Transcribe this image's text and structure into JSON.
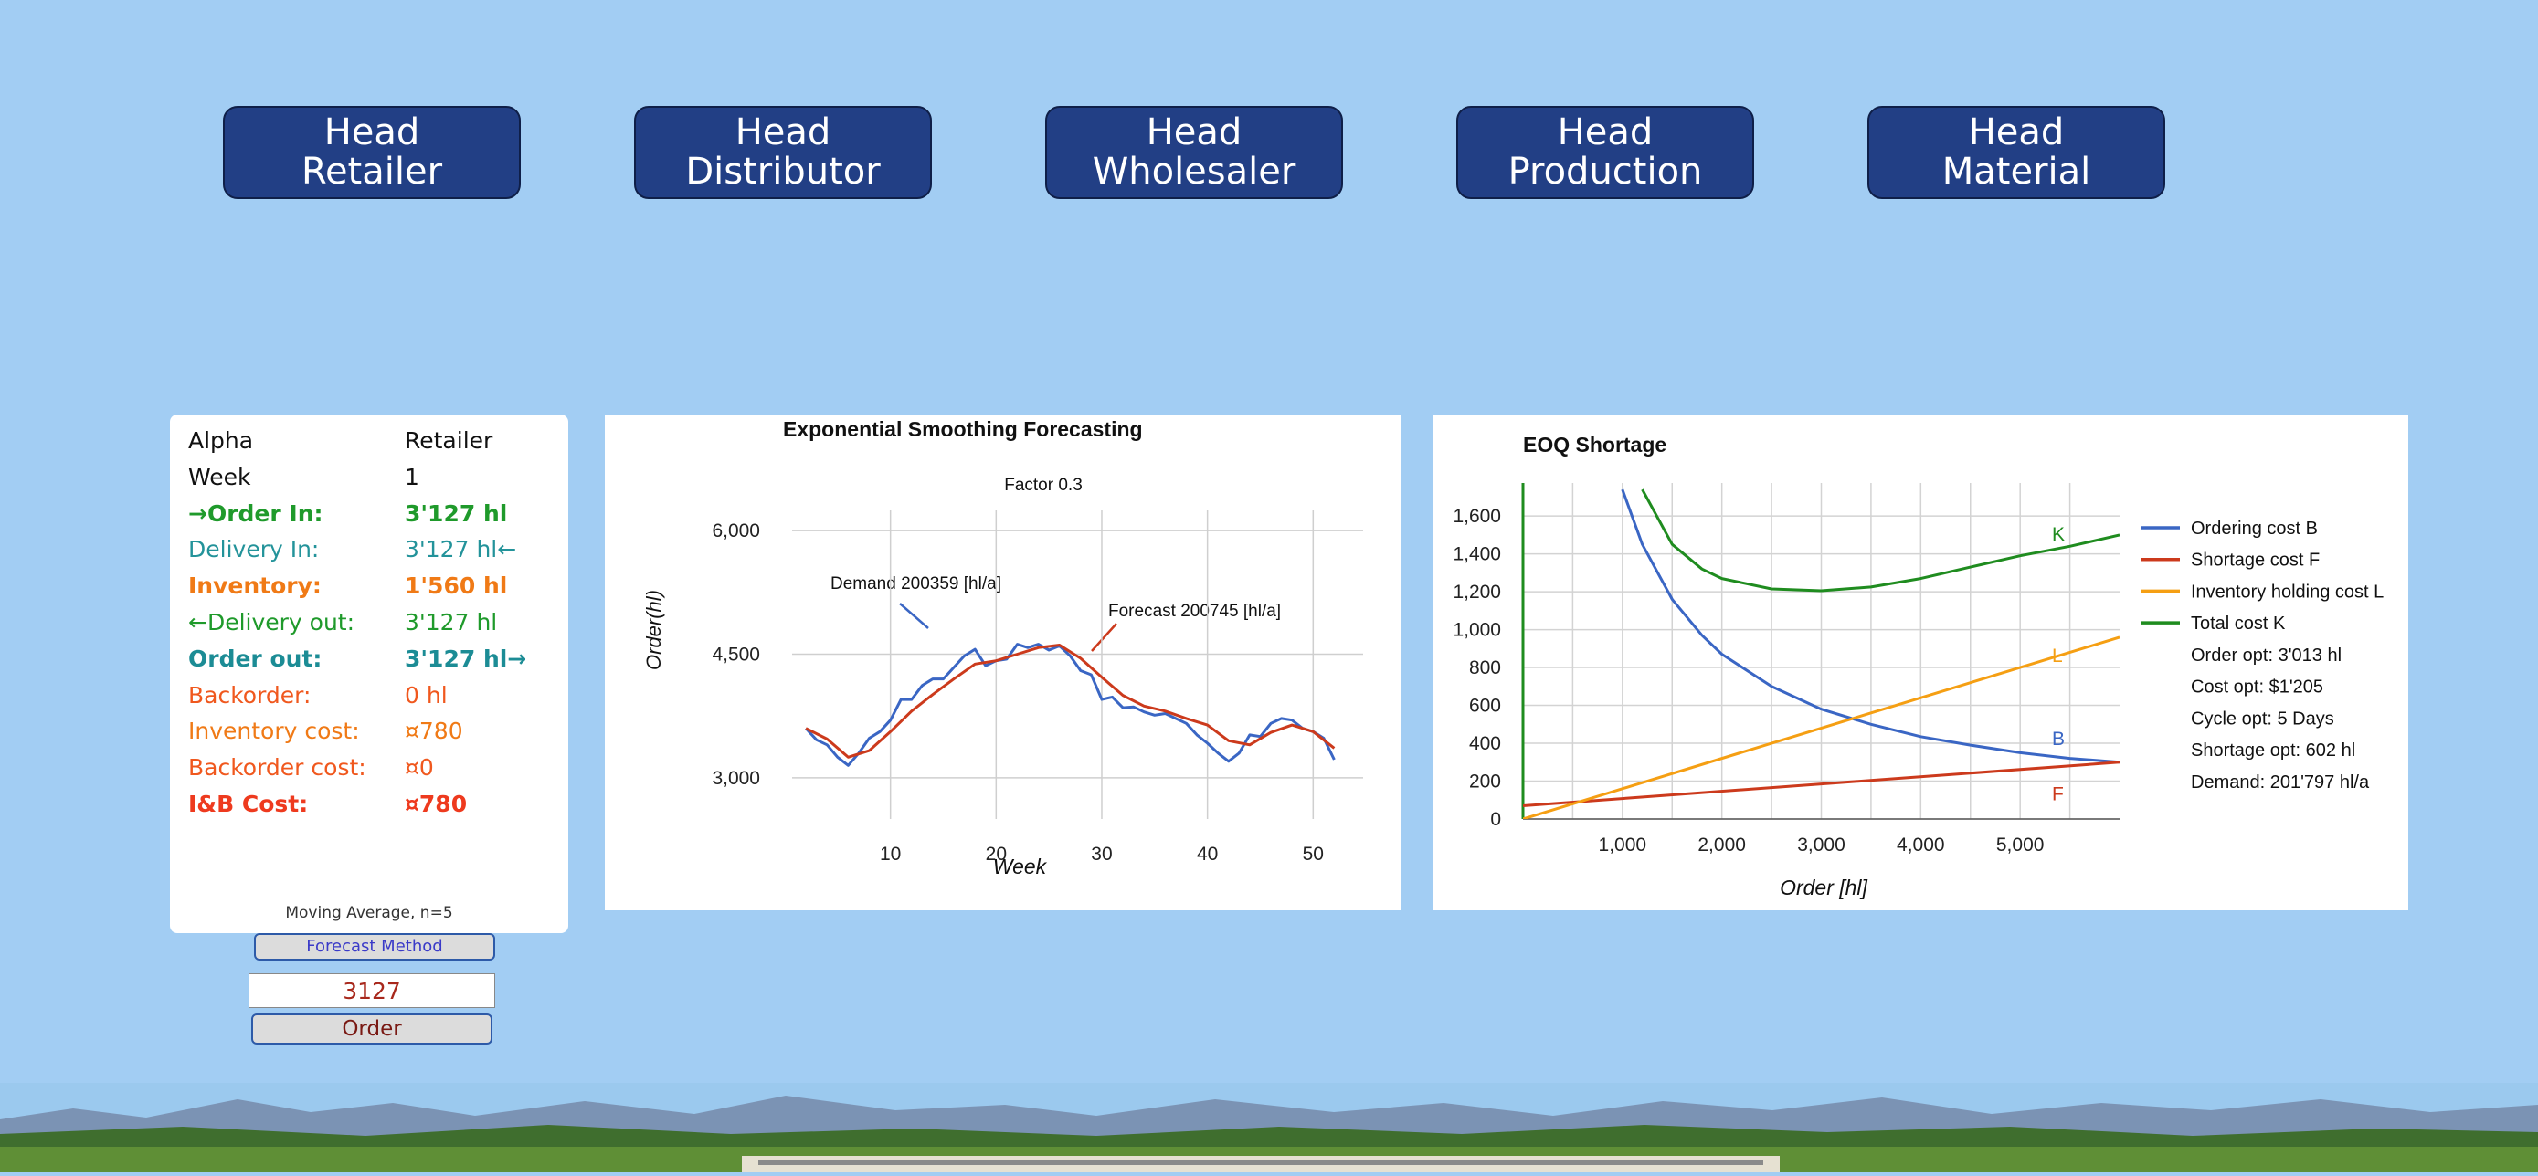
{
  "head_buttons": [
    {
      "line1": "Head",
      "line2": "Retailer"
    },
    {
      "line1": "Head",
      "line2": "Distributor"
    },
    {
      "line1": "Head",
      "line2": "Wholesaler"
    },
    {
      "line1": "Head",
      "line2": "Production"
    },
    {
      "line1": "Head",
      "line2": "Material"
    }
  ],
  "info_panel": {
    "rows": [
      {
        "label": "Alpha",
        "value": "Retailer",
        "color": "#111111",
        "bold": false
      },
      {
        "label": "Week",
        "value": "1",
        "color": "#111111",
        "bold": false
      },
      {
        "label": "→Order In:",
        "value": "3'127 hl",
        "color": "#1f9a2b",
        "bold": true
      },
      {
        "label": "Delivery In:",
        "value": "3'127 hl←",
        "color": "#23939a",
        "bold": false
      },
      {
        "label": "Inventory:",
        "value": "1'560 hl",
        "color": "#f07a16",
        "bold": true
      },
      {
        "label": "←Delivery out:",
        "value": "3'127 hl",
        "color": "#1f9a2b",
        "bold": false
      },
      {
        "label": "Order out:",
        "value": "3'127 hl→",
        "color": "#1c8c95",
        "bold": true
      },
      {
        "label": "Backorder:",
        "value": "0 hl",
        "color": "#f0581e",
        "bold": false
      },
      {
        "label": "Inventory cost:",
        "value": "¤780",
        "color": "#f07a16",
        "bold": false
      },
      {
        "label": "Backorder cost:",
        "value": "¤0",
        "color": "#f0581e",
        "bold": false
      },
      {
        "label": "I&B Cost:",
        "value": "¤780",
        "color": "#ee3a1e",
        "bold": true
      }
    ],
    "method_note": "Moving Average, n=5"
  },
  "controls": {
    "forecast_method_label": "Forecast Method",
    "order_value": "3127",
    "order_label": "Order"
  },
  "colors": {
    "background": "#a2cdf3",
    "head_button": "#223f85",
    "demand": "#3a66c4",
    "forecast": "#cc3a1c",
    "ordering": "#3a66c4",
    "shortage": "#cc3a1c",
    "holding": "#f59f13",
    "total": "#1f8c1f"
  },
  "chart_data": [
    {
      "type": "line",
      "title": "Exponential Smoothing Forecasting",
      "subtitle": "Factor 0.3",
      "xlabel": "Week",
      "ylabel": "Order(hl)",
      "xticks": [
        10,
        20,
        30,
        40,
        50
      ],
      "yticks": [
        "3,000",
        "4,500",
        "6,000"
      ],
      "yticks_values": [
        3000,
        4500,
        6000
      ],
      "xlim": [
        0,
        53
      ],
      "ylim": [
        2500,
        6300
      ],
      "grid": true,
      "annotations": [
        "Demand 200359 [hl/a]",
        "Forecast 200745 [hl/a]"
      ],
      "series": [
        {
          "name": "Demand",
          "x": [
            2,
            3,
            4,
            5,
            6,
            7,
            8,
            9,
            10,
            11,
            12,
            13,
            14,
            15,
            16,
            17,
            18,
            19,
            20,
            21,
            22,
            23,
            24,
            25,
            26,
            27,
            28,
            29,
            30,
            31,
            32,
            33,
            34,
            35,
            36,
            37,
            38,
            39,
            40,
            41,
            42,
            43,
            44,
            45,
            46,
            47,
            48,
            49,
            50,
            51,
            52
          ],
          "values": [
            3600,
            3460,
            3400,
            3250,
            3150,
            3300,
            3480,
            3560,
            3700,
            3950,
            3950,
            4120,
            4200,
            4200,
            4340,
            4480,
            4560,
            4360,
            4420,
            4440,
            4620,
            4580,
            4620,
            4550,
            4600,
            4480,
            4300,
            4250,
            3950,
            3980,
            3850,
            3860,
            3800,
            3760,
            3780,
            3720,
            3660,
            3520,
            3420,
            3300,
            3200,
            3300,
            3520,
            3500,
            3660,
            3720,
            3700,
            3600,
            3560,
            3480,
            3220
          ]
        },
        {
          "name": "Forecast",
          "x": [
            2,
            4,
            6,
            8,
            10,
            12,
            14,
            16,
            18,
            20,
            22,
            24,
            26,
            28,
            30,
            32,
            34,
            36,
            38,
            40,
            42,
            44,
            46,
            48,
            50,
            52
          ],
          "values": [
            3600,
            3470,
            3250,
            3330,
            3560,
            3810,
            4010,
            4200,
            4380,
            4420,
            4500,
            4580,
            4610,
            4450,
            4220,
            4000,
            3870,
            3810,
            3720,
            3640,
            3450,
            3400,
            3550,
            3640,
            3560,
            3360
          ]
        }
      ]
    },
    {
      "type": "line",
      "title": "EOQ Shortage",
      "xlabel": "Order [hl]",
      "ylabel": "",
      "xticks": [
        "1,000",
        "2,000",
        "3,000",
        "4,000",
        "5,000"
      ],
      "xticks_values": [
        1000,
        2000,
        3000,
        4000,
        5000
      ],
      "yticks": [
        "0",
        "200",
        "400",
        "600",
        "800",
        "1,000",
        "1,200",
        "1,400",
        "1,600"
      ],
      "yticks_values": [
        0,
        200,
        400,
        600,
        800,
        1000,
        1200,
        1400,
        1600
      ],
      "xlim": [
        0,
        6000
      ],
      "ylim": [
        0,
        1750
      ],
      "grid": true,
      "legend_position": "right",
      "series": [
        {
          "name": "Ordering cost B",
          "label": "B",
          "x": [
            1000,
            1200,
            1500,
            1800,
            2000,
            2500,
            3000,
            3500,
            4000,
            4500,
            5000,
            5500,
            6000
          ],
          "values": [
            1740,
            1450,
            1160,
            970,
            870,
            700,
            580,
            500,
            435,
            390,
            350,
            320,
            300
          ]
        },
        {
          "name": "Shortage cost F",
          "label": "F",
          "x": [
            0,
            6000
          ],
          "values": [
            70,
            300
          ]
        },
        {
          "name": "Inventory holding cost L",
          "label": "L",
          "x": [
            0,
            6000
          ],
          "values": [
            0,
            960
          ]
        },
        {
          "name": "Total cost K",
          "label": "K",
          "x": [
            1200,
            1500,
            1800,
            2000,
            2500,
            3000,
            3500,
            4000,
            4500,
            5000,
            5500,
            6000
          ],
          "values": [
            1740,
            1450,
            1320,
            1270,
            1215,
            1205,
            1225,
            1270,
            1330,
            1390,
            1440,
            1500
          ]
        }
      ],
      "info_lines": [
        "Order opt: 3'013 hl",
        "Cost opt: $1'205",
        "Cycle opt: 5 Days",
        "Shortage opt: 602 hl",
        "Demand: 201'797 hl/a"
      ]
    }
  ]
}
